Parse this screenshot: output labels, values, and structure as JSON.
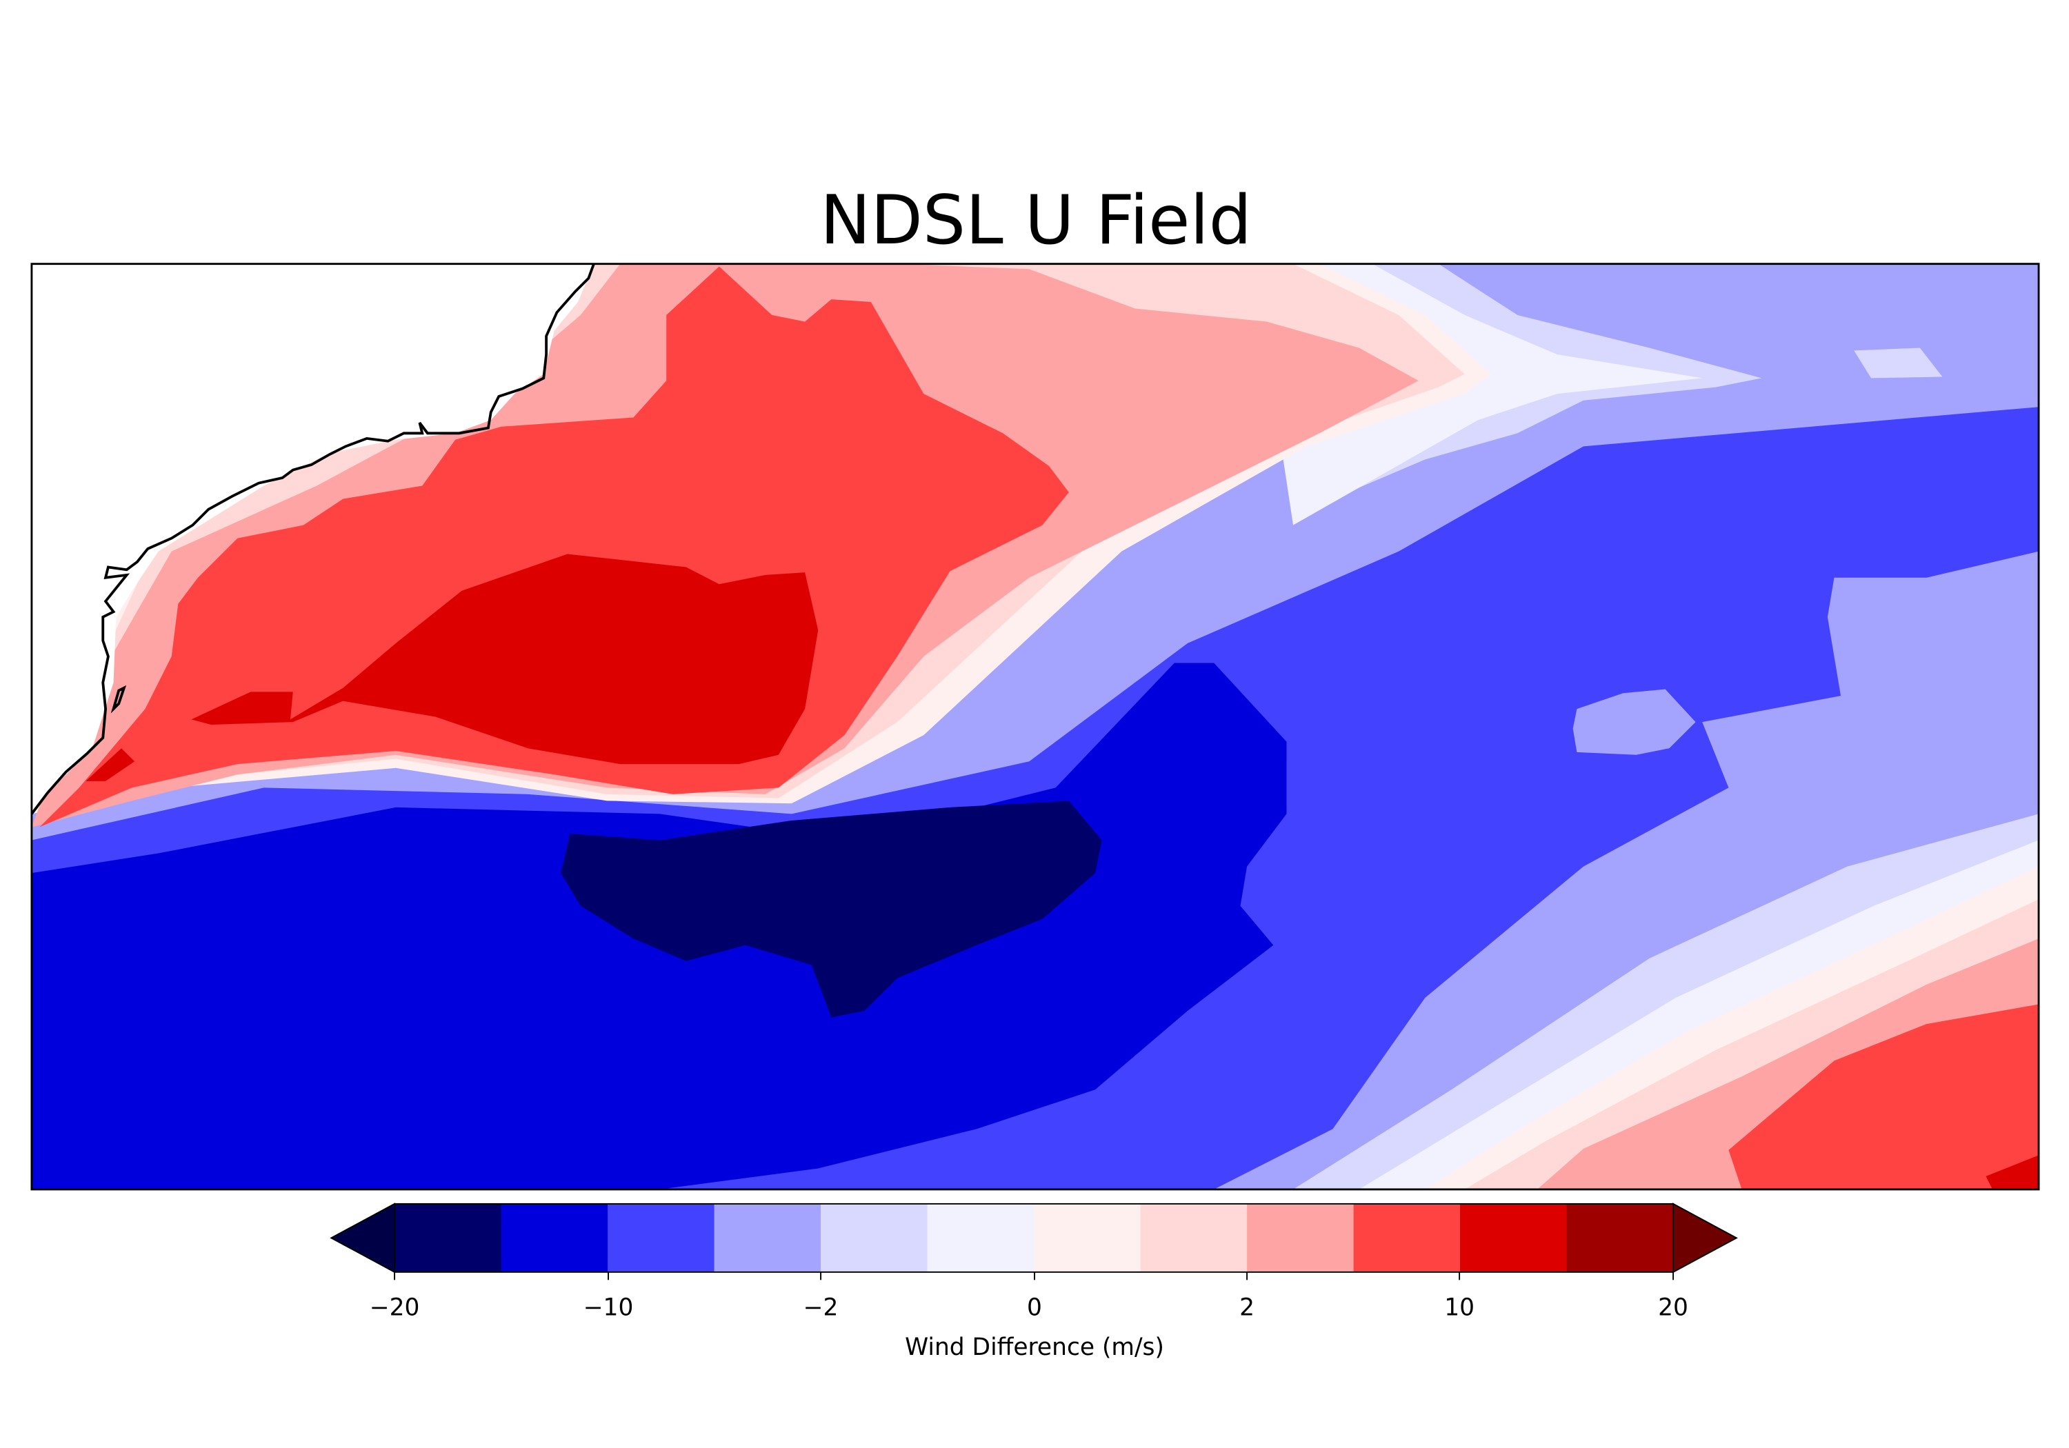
{
  "title": "NDSL U Field",
  "colorbar": {
    "label": "Wind Difference (m/s)",
    "extend": "both",
    "colors": [
      "#00006b",
      "#0000dc",
      "#4242ff",
      "#a4a4ff",
      "#d9d9ff",
      "#f2f2ff",
      "#fff0f0",
      "#ffd8d8",
      "#ffa4a4",
      "#ff4242",
      "#dc0000",
      "#9e0000"
    ],
    "under_color": "#000046",
    "over_color": "#6e0000",
    "tick_labels": [
      "−20",
      "−10",
      "−2",
      "0",
      "2",
      "10",
      "20"
    ]
  },
  "map": {
    "colors": {
      "neg_20_15": "#00006b",
      "neg_15_10": "#0000dc",
      "neg_10_5": "#4242ff",
      "neg_5_2": "#a4a4ff",
      "neg_2_1": "#d9d9ff",
      "neg_1_0": "#f2f2ff",
      "pos_0_1": "#fff0f0",
      "pos_1_2": "#ffd8d8",
      "pos_2_5": "#ffa4a4",
      "pos_5_10": "#ff4242",
      "pos_10_15": "#dc0000",
      "land": "#ffffff",
      "coastline": "#000000"
    }
  }
}
